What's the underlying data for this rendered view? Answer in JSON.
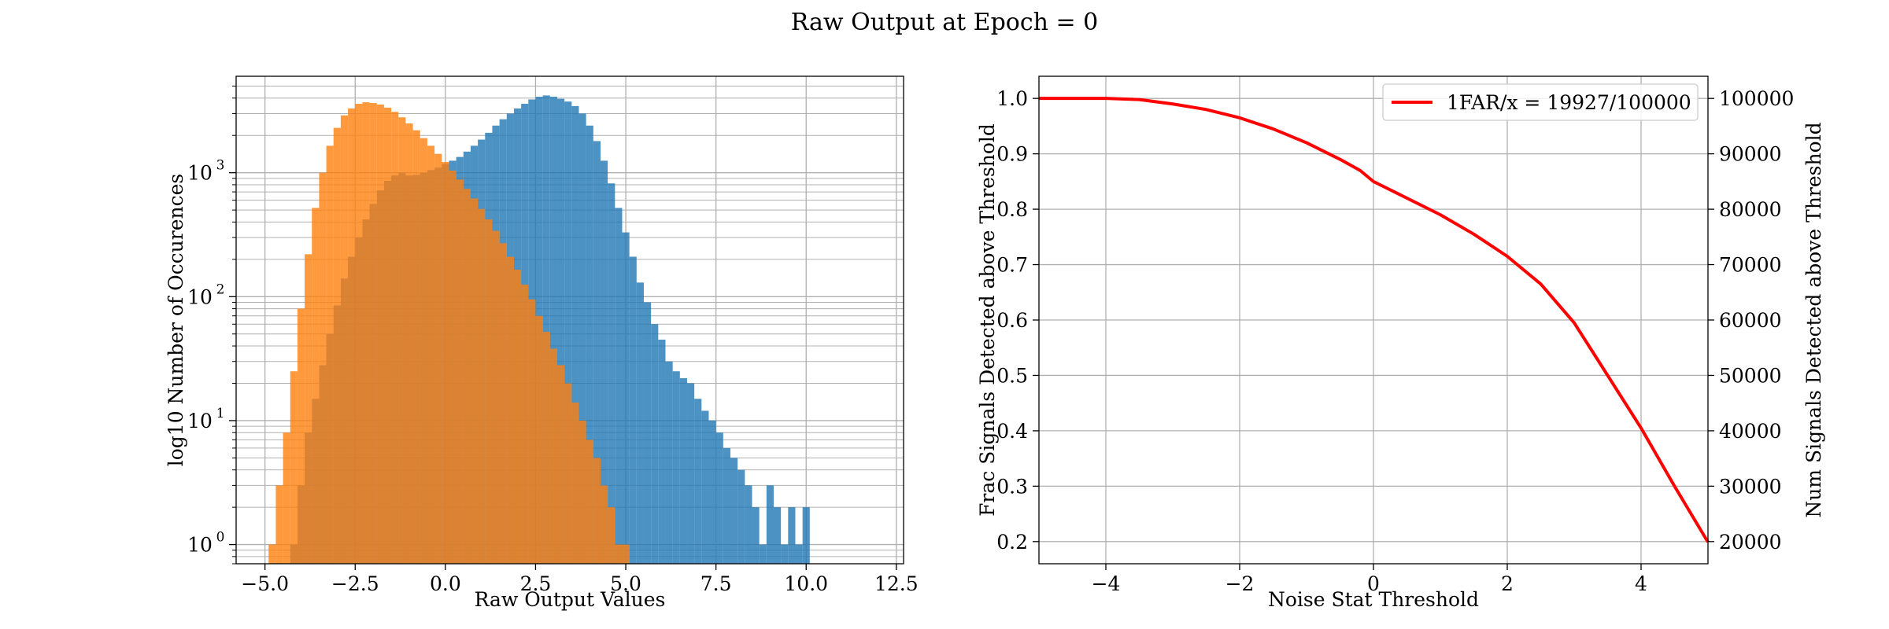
{
  "figure": {
    "title": "Raw Output at Epoch = 0"
  },
  "chart_data": [
    {
      "type": "bar",
      "subtype": "histogram",
      "xlabel": "Raw Output Values",
      "ylabel": "log10 Number of Occurences",
      "yscale": "log",
      "xlim": [
        -5.8,
        12.7
      ],
      "ylim": [
        0.7,
        6000
      ],
      "grid": true,
      "x_ticks": [
        -5,
        -2.5,
        0,
        2.5,
        5,
        7.5,
        10,
        12.5
      ],
      "x_tick_labels": [
        "−5.0",
        "−2.5",
        "0.0",
        "2.5",
        "5.0",
        "7.5",
        "10.0",
        "12.5"
      ],
      "y_ticks": [
        1,
        10,
        100,
        1000
      ],
      "y_tick_labels": [
        "10",
        "10",
        "10",
        "10"
      ],
      "y_tick_exponents": [
        "0",
        "1",
        "2",
        "3"
      ],
      "series": [
        {
          "color": "#1f77b4",
          "alpha": 0.8,
          "bins": {
            "start": -4.3,
            "width": 0.2
          },
          "counts": [
            1,
            3,
            8,
            15,
            28,
            50,
            85,
            140,
            210,
            300,
            420,
            560,
            720,
            860,
            950,
            1000,
            950,
            960,
            1000,
            1050,
            1100,
            1180,
            1250,
            1340,
            1480,
            1650,
            1850,
            2100,
            2400,
            2700,
            3000,
            3300,
            3600,
            3900,
            4100,
            4200,
            4100,
            3950,
            3750,
            3450,
            3000,
            2400,
            1800,
            1250,
            820,
            520,
            330,
            210,
            130,
            90,
            60,
            45,
            30,
            25,
            22,
            20,
            15,
            12,
            10,
            8,
            6,
            5,
            4,
            3,
            2,
            1,
            3,
            2,
            1,
            2,
            1,
            2
          ]
        },
        {
          "color": "#ff7f0e",
          "alpha": 0.8,
          "bins": {
            "start": -4.9,
            "width": 0.2
          },
          "counts": [
            1,
            3,
            8,
            25,
            80,
            220,
            520,
            1000,
            1650,
            2300,
            2900,
            3300,
            3600,
            3700,
            3650,
            3550,
            3350,
            3100,
            2800,
            2500,
            2200,
            1900,
            1650,
            1420,
            1220,
            1040,
            880,
            740,
            620,
            510,
            420,
            340,
            270,
            210,
            165,
            125,
            95,
            70,
            52,
            38,
            28,
            20,
            14,
            10,
            7,
            5,
            3,
            2,
            1,
            1
          ]
        }
      ]
    },
    {
      "type": "line",
      "xlabel": "Noise Stat Threshold",
      "ylabel": "Frac Signals Detected above Threshold",
      "ylabel_right": "Num Signals Detected above Threshold",
      "xlim": [
        -5,
        5
      ],
      "ylim": [
        0.16,
        1.04
      ],
      "ylim_right": [
        16000,
        104000
      ],
      "grid": true,
      "legend": "top-right",
      "x_ticks": [
        -4,
        -2,
        0,
        2,
        4
      ],
      "x_tick_labels": [
        "−4",
        "−2",
        "0",
        "2",
        "4"
      ],
      "y_ticks": [
        0.2,
        0.3,
        0.4,
        0.5,
        0.6,
        0.7,
        0.8,
        0.9,
        1.0
      ],
      "y_tick_labels": [
        "0.2",
        "0.3",
        "0.4",
        "0.5",
        "0.6",
        "0.7",
        "0.8",
        "0.9",
        "1.0"
      ],
      "y_right_ticks": [
        20000,
        30000,
        40000,
        50000,
        60000,
        70000,
        80000,
        90000,
        100000
      ],
      "y_right_tick_labels": [
        "20000",
        "30000",
        "40000",
        "50000",
        "60000",
        "70000",
        "80000",
        "90000",
        "100000"
      ],
      "series": [
        {
          "name": "1FAR/x = 19927/100000",
          "color": "#ff0000",
          "x": [
            -5,
            -4.5,
            -4,
            -3.5,
            -3,
            -2.5,
            -2,
            -1.5,
            -1,
            -0.5,
            -0.2,
            0,
            0.5,
            1,
            1.5,
            2,
            2.5,
            3,
            3.5,
            4,
            4.5,
            5
          ],
          "y": [
            1.0,
            1.0,
            1.0,
            0.998,
            0.99,
            0.98,
            0.965,
            0.945,
            0.92,
            0.89,
            0.87,
            0.85,
            0.82,
            0.79,
            0.755,
            0.715,
            0.665,
            0.595,
            0.5,
            0.405,
            0.3,
            0.199
          ]
        }
      ]
    }
  ]
}
